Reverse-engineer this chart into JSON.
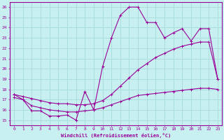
{
  "xlabel": "Windchill (Refroidissement éolien,°C)",
  "bg_color": "#c8f0f0",
  "line_color": "#990099",
  "grid_color": "#aadddd",
  "xlim": [
    -0.5,
    23.5
  ],
  "ylim": [
    14.5,
    26.5
  ],
  "xticks": [
    0,
    1,
    2,
    3,
    4,
    5,
    6,
    7,
    8,
    9,
    10,
    11,
    12,
    13,
    14,
    15,
    16,
    17,
    18,
    19,
    20,
    21,
    22,
    23
  ],
  "yticks": [
    15,
    16,
    17,
    18,
    19,
    20,
    21,
    22,
    23,
    24,
    25,
    26
  ],
  "line1_x": [
    0,
    1,
    2,
    3,
    4,
    5,
    6,
    7,
    8,
    9,
    10,
    11,
    12,
    13,
    14,
    15,
    16,
    17,
    18,
    19,
    20,
    21,
    22,
    23
  ],
  "line1_y": [
    17.5,
    17.0,
    15.9,
    15.9,
    15.4,
    15.4,
    15.5,
    15.0,
    17.8,
    16.0,
    20.2,
    23.0,
    25.2,
    26.0,
    26.0,
    24.5,
    24.5,
    23.0,
    23.5,
    23.9,
    22.7,
    23.9,
    23.9,
    19.0
  ],
  "line2_x": [
    0,
    1,
    2,
    3,
    4,
    5,
    6,
    7,
    8,
    9,
    10,
    11,
    12,
    13,
    14,
    15,
    16,
    17,
    18,
    19,
    20,
    21,
    22,
    23
  ],
  "line2_y": [
    17.5,
    17.3,
    17.1,
    16.9,
    16.7,
    16.6,
    16.6,
    16.5,
    16.5,
    16.6,
    16.9,
    17.5,
    18.3,
    19.1,
    19.9,
    20.5,
    21.1,
    21.5,
    21.9,
    22.2,
    22.4,
    22.6,
    22.6,
    19.0
  ],
  "line3_x": [
    0,
    1,
    2,
    3,
    4,
    5,
    6,
    7,
    8,
    9,
    10,
    11,
    12,
    13,
    14,
    15,
    16,
    17,
    18,
    19,
    20,
    21,
    22,
    23
  ],
  "line3_y": [
    17.2,
    17.0,
    16.4,
    16.2,
    16.0,
    15.9,
    15.8,
    15.8,
    15.9,
    16.0,
    16.2,
    16.5,
    16.8,
    17.1,
    17.4,
    17.5,
    17.6,
    17.7,
    17.8,
    17.9,
    18.0,
    18.1,
    18.1,
    18.0
  ]
}
